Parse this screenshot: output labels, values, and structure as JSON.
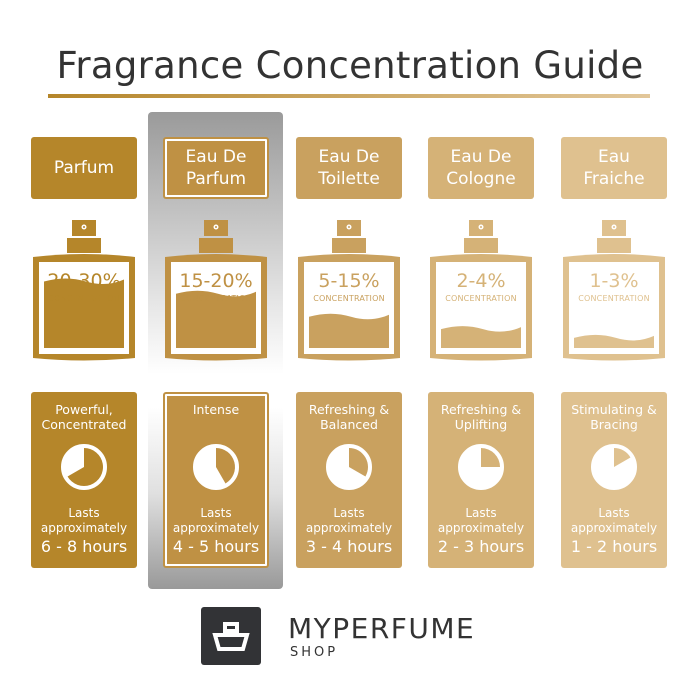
{
  "title": "Fragrance Concentration Guide",
  "concentration_label": "CONCENTRATION",
  "lasts_label_1": "Lasts",
  "lasts_label_2": "approximately",
  "highlighted_column": "Eau De Parfum",
  "columns": [
    {
      "name_1": "Parfum",
      "name_2": "",
      "range": "20-30%",
      "description_1": "Powerful,",
      "description_2": "Concentrated",
      "duration": "6 - 8 hours",
      "max_hours": 8,
      "fill_level": 0.4,
      "color": "#b5862a"
    },
    {
      "name_1": "Eau De",
      "name_2": "Parfum",
      "range": "15-20%",
      "description_1": "Intense",
      "description_2": "",
      "duration": "4 - 5 hours",
      "max_hours": 5,
      "fill_level": 0.33,
      "color": "#bf9144"
    },
    {
      "name_1": "Eau De",
      "name_2": "Toilette",
      "range": "5-15%",
      "description_1": "Refreshing &",
      "description_2": "Balanced",
      "duration": "3 - 4 hours",
      "max_hours": 4,
      "fill_level": 0.2,
      "color": "#c9a15f"
    },
    {
      "name_1": "Eau De",
      "name_2": "Cologne",
      "range": "2-4%",
      "description_1": "Refreshing &",
      "description_2": "Uplifting",
      "duration": "2 - 3 hours",
      "max_hours": 3,
      "fill_level": 0.13,
      "color": "#d5b277"
    },
    {
      "name_1": "Eau",
      "name_2": "Fraiche",
      "range": "1-3%",
      "description_1": "Stimulating &",
      "description_2": "Bracing",
      "duration": "1 - 2 hours",
      "max_hours": 2,
      "fill_level": 0.08,
      "color": "#dfc18f"
    }
  ],
  "logo": {
    "brand": "MYPERFUME",
    "sub": "SHOP"
  }
}
